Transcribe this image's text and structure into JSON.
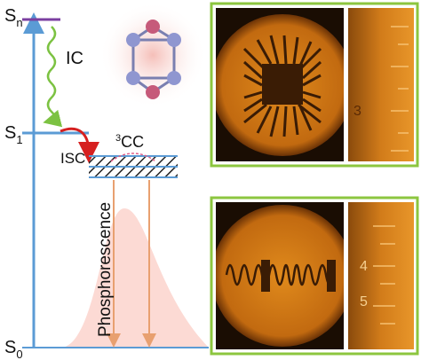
{
  "levels": [
    {
      "symbol": "S",
      "subscript": "n"
    },
    {
      "symbol": "S",
      "subscript": "1"
    },
    {
      "symbol": "S",
      "subscript": "0"
    }
  ],
  "transitions": {
    "internal_conversion": "IC",
    "intersystem_crossing": "ISC",
    "emission": "Phosphorescence"
  },
  "triplet_state": {
    "superscript": "3",
    "label": "CC"
  },
  "images": [
    {
      "ruler_labels": [
        "3"
      ]
    },
    {
      "ruler_labels": [
        "4",
        "5"
      ]
    }
  ]
}
